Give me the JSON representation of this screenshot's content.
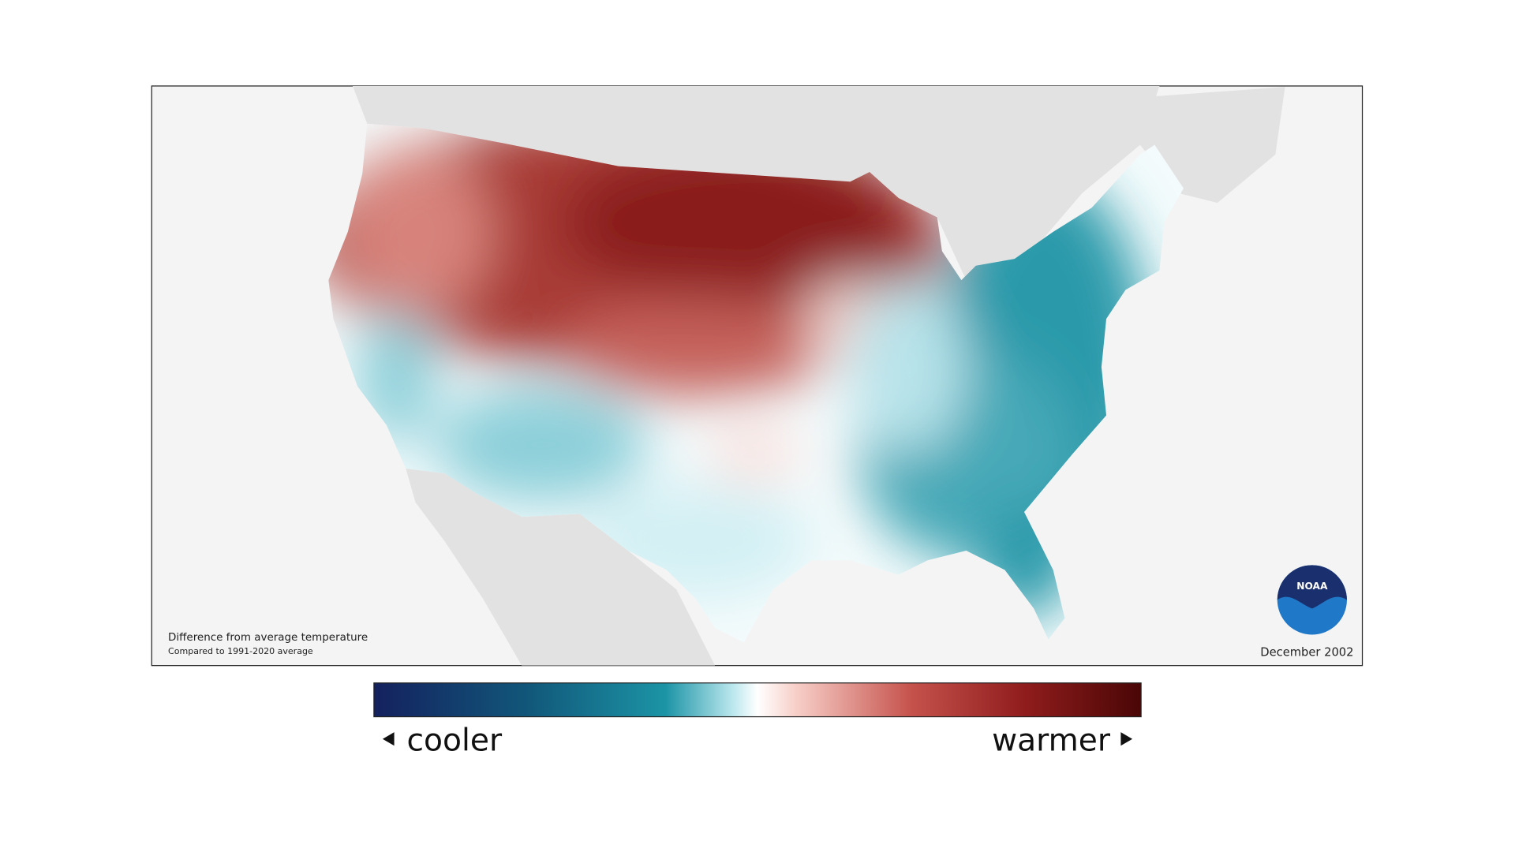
{
  "map": {
    "note_title": "Difference from average temperature",
    "note_subtitle": "Compared to 1991-2020 average",
    "date": "December 2002",
    "logo": "NOAA",
    "legend": {
      "low": "cooler",
      "high": "warmer"
    }
  }
}
